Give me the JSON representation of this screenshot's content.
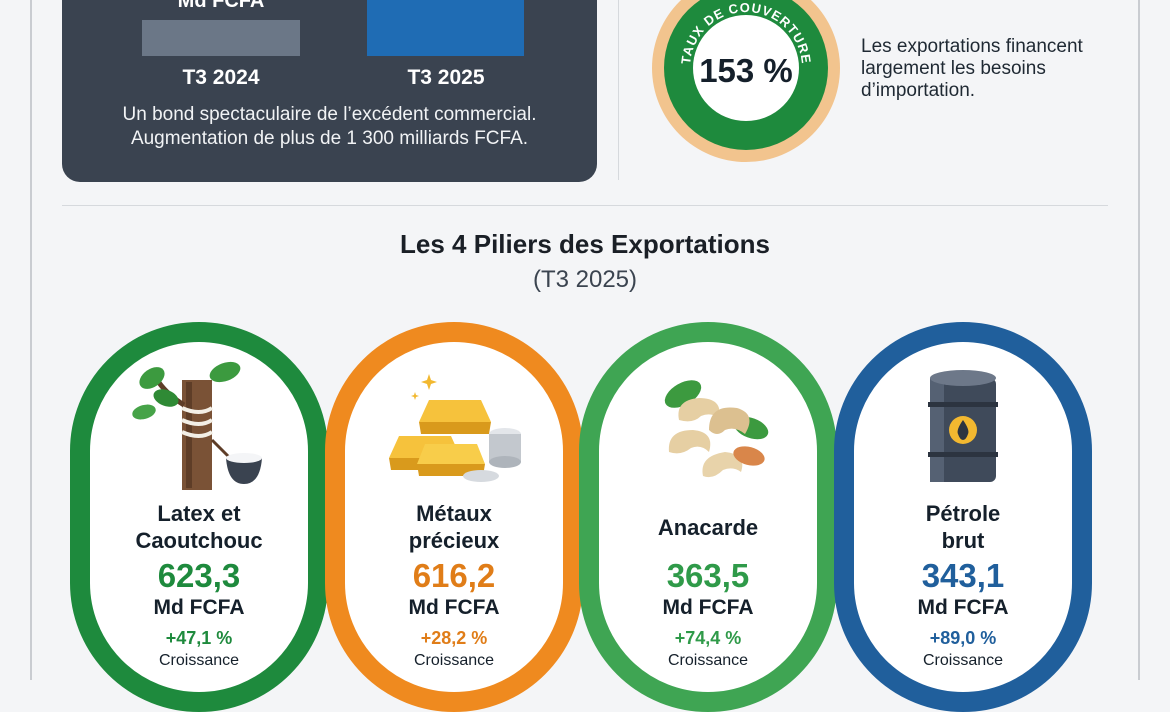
{
  "summary": {
    "bar_value_label": "Md FCFA",
    "period_prev": "T3 2024",
    "period_curr": "T3 2025",
    "caption_line1": "Un bond spectaculaire de l’excédent commercial.",
    "caption_line2": "Augmentation de plus de 1 300 milliards FCFA."
  },
  "coverage": {
    "arc_text": "TAUX DE COUVERTURE",
    "value": "153 %",
    "description": "Les exportations financent largement les besoins d’importation.",
    "color": "#1e8a3d"
  },
  "section": {
    "title": "Les 4 Piliers des Exportations",
    "subtitle": "(T3 2025)"
  },
  "pillars": [
    {
      "name_line1": "Latex et",
      "name_line2": "Caoutchouc",
      "value": "623,3",
      "unit": "Md FCFA",
      "growth": "+47,1 %",
      "growth_label": "Croissance",
      "icon": "rubber-tree-icon",
      "color": "#1e8a3d"
    },
    {
      "name_line1": "Métaux",
      "name_line2": "précieux",
      "value": "616,2",
      "unit": "Md FCFA",
      "growth": "+28,2 %",
      "growth_label": "Croissance",
      "icon": "gold-bars-icon",
      "color": "#ef8a1f"
    },
    {
      "name_line1": "Anacarde",
      "name_line2": "",
      "value": "363,5",
      "unit": "Md FCFA",
      "growth": "+74,4 %",
      "growth_label": "Croissance",
      "icon": "cashew-icon",
      "color": "#3fa553"
    },
    {
      "name_line1": "Pétrole",
      "name_line2": "brut",
      "value": "343,1",
      "unit": "Md FCFA",
      "growth": "+89,0 %",
      "growth_label": "Croissance",
      "icon": "oil-barrel-icon",
      "color": "#205f9c"
    }
  ]
}
